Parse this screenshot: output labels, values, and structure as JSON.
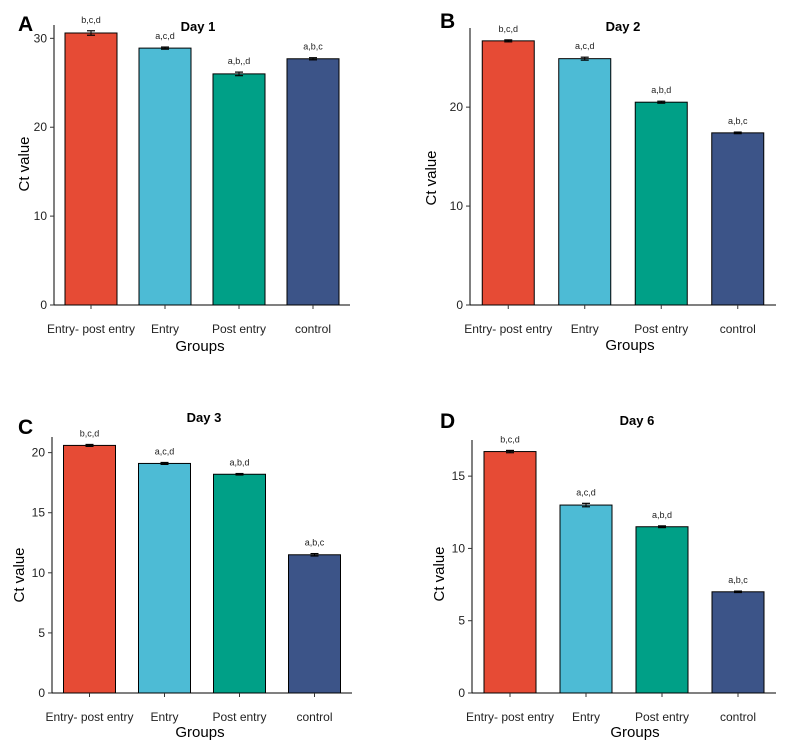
{
  "colors": {
    "entry_post_entry": "#e64b35",
    "entry": "#4dbbd5",
    "post_entry": "#00a087",
    "control": "#3c5488"
  },
  "chart_data": [
    {
      "panel": "A",
      "type": "bar",
      "title": "Day 1",
      "xlabel": "Groups",
      "ylabel": "Ct value",
      "categories": [
        "Entry- post entry",
        "Entry",
        "Post entry",
        "control"
      ],
      "values": [
        30.6,
        28.9,
        26.0,
        27.7
      ],
      "errors": [
        0.25,
        0.12,
        0.2,
        0.12
      ],
      "annotations": [
        "b,c,d",
        "a,c,d",
        "a,b,,d",
        "a,b,c"
      ],
      "ylim": [
        0,
        31.5
      ],
      "yticks": [
        0,
        10,
        20,
        30
      ],
      "grid": false,
      "legend": "none"
    },
    {
      "panel": "B",
      "type": "bar",
      "title": "Day 2",
      "xlabel": "Groups",
      "ylabel": "Ct value",
      "categories": [
        "Entry- post entry",
        "Entry",
        "Post entry",
        "control"
      ],
      "values": [
        26.7,
        24.9,
        20.5,
        17.4
      ],
      "errors": [
        0.1,
        0.15,
        0.1,
        0.08
      ],
      "annotations": [
        "b,c,d",
        "a,c,d",
        "a,b,d",
        "a,b,c"
      ],
      "ylim": [
        0,
        28
      ],
      "yticks": [
        0,
        10,
        20
      ],
      "grid": false,
      "legend": "none"
    },
    {
      "panel": "C",
      "type": "bar",
      "title": "Day 3",
      "xlabel": "Groups",
      "ylabel": "Ct value",
      "categories": [
        "Entry- post entry",
        "Entry",
        "Post entry",
        "control"
      ],
      "values": [
        20.6,
        19.1,
        18.2,
        11.5
      ],
      "errors": [
        0.08,
        0.08,
        0.06,
        0.1
      ],
      "annotations": [
        "b,c,d",
        "a,c,d",
        "a,b,d",
        "a,b,c"
      ],
      "ylim": [
        0,
        21.3
      ],
      "yticks": [
        0,
        5,
        10,
        15,
        20
      ],
      "grid": false,
      "legend": "none"
    },
    {
      "panel": "D",
      "type": "bar",
      "title": "Day 6",
      "xlabel": "Groups",
      "ylabel": "Ct value",
      "categories": [
        "Entry- post entry",
        "Entry",
        "Post entry",
        "control"
      ],
      "values": [
        16.7,
        13.0,
        11.5,
        7.0
      ],
      "errors": [
        0.08,
        0.12,
        0.06,
        0.05
      ],
      "annotations": [
        "b,c,d",
        "a,c,d",
        "a,b,d",
        "a,b,c"
      ],
      "ylim": [
        0,
        17.5
      ],
      "yticks": [
        0,
        5,
        10,
        15
      ],
      "grid": false,
      "legend": "none"
    }
  ]
}
